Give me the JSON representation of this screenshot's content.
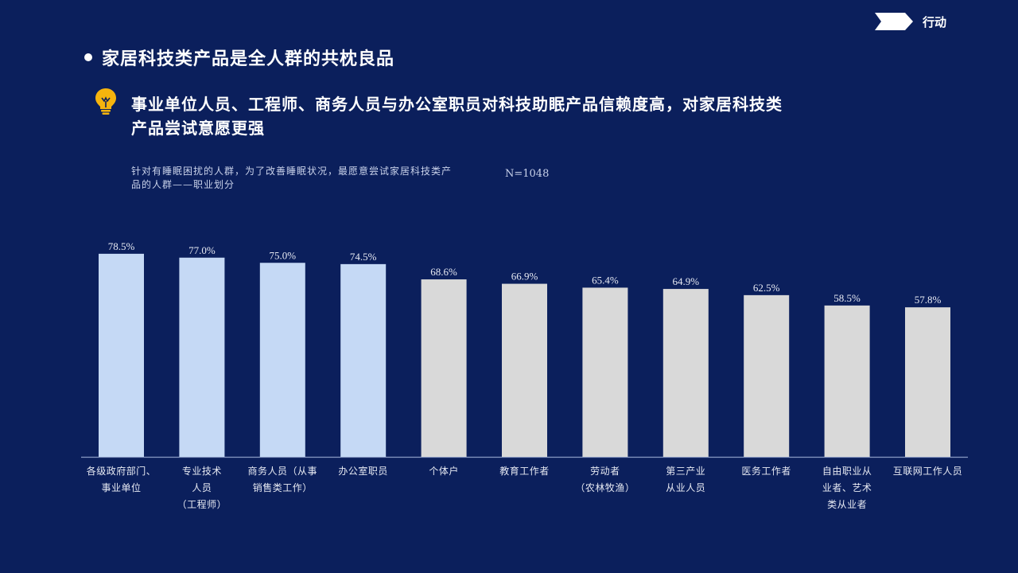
{
  "header": {
    "section_label": "行动"
  },
  "title": "家居科技类产品是全人群的共枕良品",
  "headline_lines": [
    "事业单位人员、工程师、商务人员与办公室职员对科技助眠产品信赖度高，对家居科技类",
    "产品尝试意愿更强"
  ],
  "chart_subtitle_lines": [
    "针对有睡眠困扰的人群，为了改善睡眠状况，最愿意尝试家居科技类产",
    "品的人群——职业划分"
  ],
  "sample_size": "N=1048",
  "colors": {
    "background": "#0b1f5c",
    "highlight_bar": "#c5d9f5",
    "normal_bar": "#d9d9d9",
    "bulb": "#f6b40e"
  },
  "chart_data": {
    "type": "bar",
    "categories": [
      [
        "各级政府部门、",
        "事业单位"
      ],
      [
        "专业技术",
        "人员",
        "（工程师）"
      ],
      [
        "商务人员（从事",
        "销售类工作）"
      ],
      [
        "办公室职员"
      ],
      [
        "个体户"
      ],
      [
        "教育工作者"
      ],
      [
        "劳动者",
        "（农林牧渔）"
      ],
      [
        "第三产业",
        "从业人员"
      ],
      [
        "医务工作者"
      ],
      [
        "自由职业从",
        "业者、艺术",
        "类从业者"
      ],
      [
        "互联网工作人员"
      ]
    ],
    "values": [
      78.5,
      77.0,
      75.0,
      74.5,
      68.6,
      66.9,
      65.4,
      64.9,
      62.5,
      58.5,
      57.8
    ],
    "value_labels": [
      "78.5%",
      "77.0%",
      "75.0%",
      "74.5%",
      "68.6%",
      "66.9%",
      "65.4%",
      "64.9%",
      "62.5%",
      "58.5%",
      "57.8%"
    ],
    "highlighted": [
      true,
      true,
      true,
      true,
      false,
      false,
      false,
      false,
      false,
      false,
      false
    ],
    "ylim": [
      0,
      80
    ],
    "grid": false,
    "legend": "none"
  }
}
